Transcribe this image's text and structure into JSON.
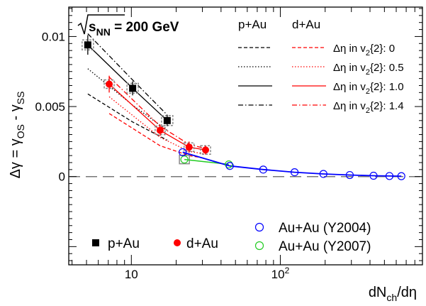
{
  "chart_data": {
    "type": "scatter",
    "x_scale": "log",
    "xlim": [
      3.8,
      900
    ],
    "ylim": [
      -0.0063,
      0.0121
    ],
    "xlabel": "dN_ch/dη",
    "xlabel_parts": {
      "pre": "dN",
      "sub": "ch",
      "post": "/dη"
    },
    "ylabel": "Δγ = γ_OS - γ_SS",
    "ylabel_parts": {
      "pre": "Δγ = γ",
      "sub1": "OS",
      "mid": " - γ",
      "sub2": "SS"
    },
    "x_ticks": [
      {
        "value": 10,
        "label": "10",
        "sup": ""
      },
      {
        "value": 100,
        "label": "10",
        "sup": "2"
      }
    ],
    "y_ticks": [
      {
        "value": 0,
        "label": "0"
      },
      {
        "value": 0.005,
        "label": "0.005"
      },
      {
        "value": 0.01,
        "label": "0.01"
      }
    ],
    "energy_label": {
      "pre": "s",
      "sub": "NN",
      "post": " = 200 GeV"
    },
    "legend_headers": {
      "pa": "p+Au",
      "da": "d+Au"
    },
    "model_labels": [
      {
        "pre": "Δη in v",
        "sub": "2",
        "post": "{2}: 0",
        "style": "dashed"
      },
      {
        "pre": "Δη in v",
        "sub": "2",
        "post": "{2}: 0.5",
        "style": "dotted"
      },
      {
        "pre": "Δη in v",
        "sub": "2",
        "post": "{2}: 1.0",
        "style": "solid"
      },
      {
        "pre": "Δη in v",
        "sub": "2",
        "post": "{2}: 1.4",
        "style": "dashdot"
      }
    ],
    "legend_markers": {
      "pa": "p+Au",
      "da": "d+Au",
      "auau2004": "Au+Au (Y2004)",
      "auau2007": "Au+Au (Y2007)"
    },
    "colors": {
      "pa": "#000000",
      "da": "#ff0000",
      "auau2004": "#0000ff",
      "auau2007": "#22cc22",
      "syst_box": "#888888"
    },
    "series": [
      {
        "name": "p+Au",
        "marker": "filled-square",
        "x": [
          5.1,
          10.2,
          17.4
        ],
        "y": [
          0.0094,
          0.0063,
          0.004
        ],
        "yerr": [
          0.0007,
          0.0005,
          0.0004
        ]
      },
      {
        "name": "d+Au",
        "marker": "filled-circle",
        "x": [
          7.1,
          15.6,
          24.4,
          31.5
        ],
        "y": [
          0.0066,
          0.0033,
          0.0021,
          0.0019
        ],
        "yerr": [
          0.0006,
          0.0004,
          0.0004,
          0.0003
        ]
      },
      {
        "name": "Au+Au (Y2004)",
        "marker": "open-circle",
        "x": [
          22.1,
          45.8,
          76.8,
          124.7,
          194.7,
          292.5,
          422.5,
          540.3,
          649.3
        ],
        "y": [
          0.00174,
          0.00076,
          0.0005,
          0.00031,
          0.00019,
          0.00011,
          6e-05,
          4e-05,
          3e-05
        ],
        "yerr": [
          0,
          0,
          0,
          0,
          0,
          0,
          0,
          0,
          0
        ]
      },
      {
        "name": "Au+Au (Y2007)",
        "marker": "open-circle",
        "x": [
          22.7,
          45.1
        ],
        "y": [
          0.00122,
          0.00087
        ],
        "yerr": [
          0,
          0
        ]
      }
    ],
    "model_curves": {
      "pa": [
        {
          "style": "dashed",
          "x": [
            5.1,
            10.2,
            17.4
          ],
          "y": [
            0.0059,
            0.0039,
            0.0026
          ]
        },
        {
          "style": "dotted",
          "x": [
            5.1,
            10.2,
            17.4
          ],
          "y": [
            0.0077,
            0.0051,
            0.0033
          ]
        },
        {
          "style": "solid",
          "x": [
            5.1,
            10.2,
            17.4
          ],
          "y": [
            0.0094,
            0.0063,
            0.004
          ]
        },
        {
          "style": "dashdot",
          "x": [
            5.1,
            10.2,
            17.4
          ],
          "y": [
            0.0102,
            0.0069,
            0.0044
          ]
        }
      ],
      "da": [
        {
          "style": "dashed",
          "x": [
            7.1,
            15.6,
            24.4,
            31.5
          ],
          "y": [
            0.0045,
            0.0022,
            0.0015,
            0.0013
          ]
        },
        {
          "style": "dotted",
          "x": [
            7.1,
            15.6,
            24.4,
            31.5
          ],
          "y": [
            0.0057,
            0.0028,
            0.0018,
            0.0016
          ]
        },
        {
          "style": "solid",
          "x": [
            7.1,
            15.6,
            24.4,
            31.5
          ],
          "y": [
            0.0066,
            0.0033,
            0.0021,
            0.0019
          ]
        },
        {
          "style": "dashdot",
          "x": [
            7.1,
            15.6,
            24.4,
            31.5
          ],
          "y": [
            0.0071,
            0.0036,
            0.0023,
            0.002
          ]
        }
      ]
    }
  }
}
